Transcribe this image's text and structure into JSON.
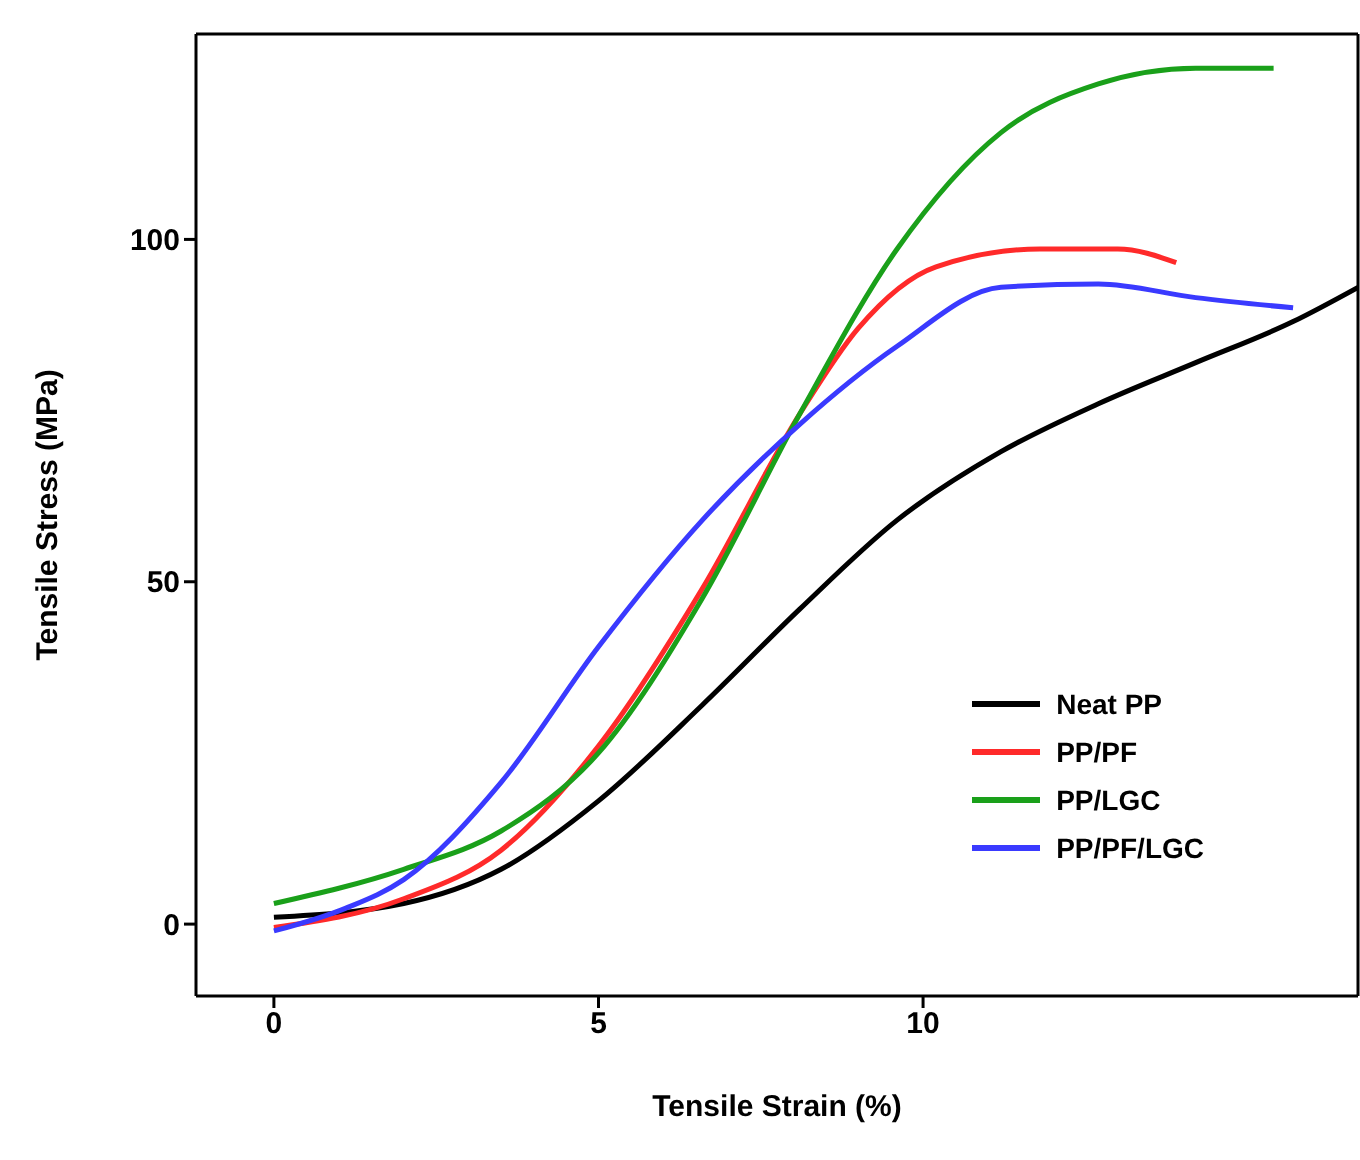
{
  "chart_data": {
    "type": "line",
    "xlabel": "Tensile Strain (%)",
    "ylabel": "Tensile Stress (MPa)",
    "xlim": [
      -1.2,
      16.7
    ],
    "ylim": [
      -10.5,
      130
    ],
    "xticks": [
      0,
      5,
      10
    ],
    "yticks": [
      0,
      50,
      100
    ],
    "grid": false,
    "legend": "bottom right",
    "marker": "none",
    "line_style": "solid",
    "series": [
      {
        "name": "Neat PP",
        "color": "#000000",
        "x": [
          0,
          2,
          3.5,
          5,
          6.6,
          8.1,
          9.6,
          11.2,
          12.7,
          14.2,
          15.7,
          16.7
        ],
        "values": [
          1,
          3,
          8,
          18,
          32,
          46,
          59,
          69,
          76,
          82,
          88,
          93
        ]
      },
      {
        "name": "PP/PF",
        "color": "#ff2a2a",
        "x": [
          0,
          2,
          3.5,
          5,
          6.6,
          8.1,
          9,
          10.2,
          11.8,
          13,
          13.9
        ],
        "values": [
          -0.5,
          3.7,
          10.8,
          26,
          49,
          74.5,
          87,
          96,
          98.6,
          98.6,
          96.6
        ]
      },
      {
        "name": "PP/LGC",
        "color": "#1aa01a",
        "x": [
          0,
          2,
          3.5,
          5,
          6.6,
          8.1,
          9.6,
          11.2,
          12.7,
          14.2,
          15.4
        ],
        "values": [
          3,
          8,
          13.6,
          25,
          47.6,
          74.5,
          98.6,
          115.6,
          122.7,
          125,
          125
        ]
      },
      {
        "name": "PP/PF/LGC",
        "color": "#3a3aff",
        "x": [
          0,
          1.1,
          2,
          3.5,
          5,
          6.6,
          8.1,
          9.6,
          11.2,
          12.7,
          14.2,
          15.7
        ],
        "values": [
          -1,
          2.3,
          6.5,
          20.7,
          40.5,
          59,
          73,
          84.4,
          93,
          93.5,
          91.5,
          90
        ]
      }
    ]
  }
}
